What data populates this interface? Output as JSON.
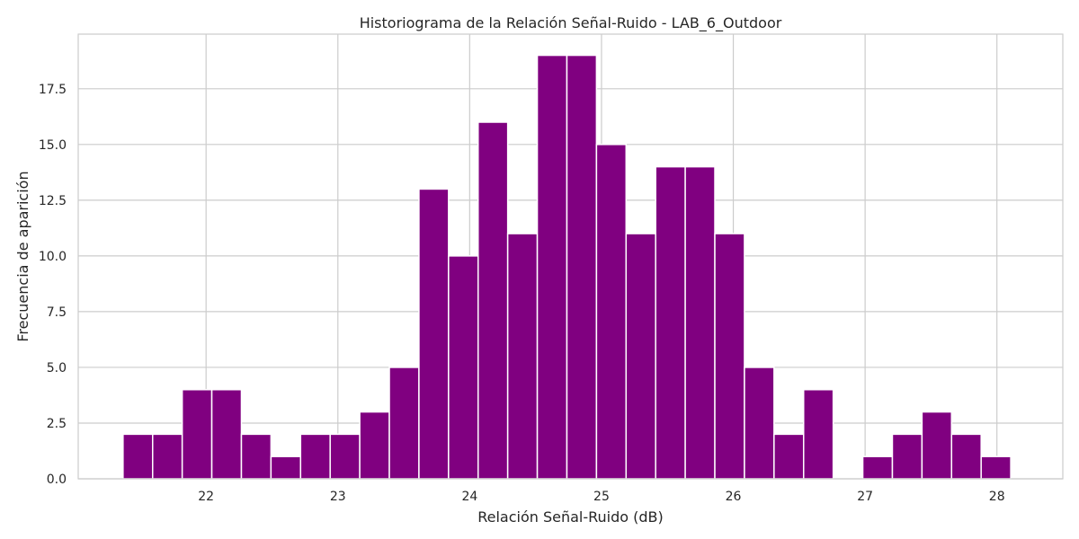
{
  "chart_data": {
    "type": "bar",
    "title": "Historiograma de la Relación Señal-Ruido - LAB_6_Outdoor",
    "xlabel": "Relación Señal-Ruido (dB)",
    "ylabel": "Frecuencia de aparición",
    "bin_start": 21.37,
    "bin_width": 0.2245,
    "values": [
      2,
      2,
      4,
      4,
      2,
      1,
      2,
      2,
      3,
      5,
      13,
      10,
      16,
      11,
      19,
      19,
      15,
      11,
      14,
      14,
      11,
      5,
      2,
      4,
      0,
      1,
      2,
      3,
      2,
      1
    ],
    "xlim": [
      21.03,
      28.5
    ],
    "ylim": [
      0,
      19.95
    ],
    "xticks": [
      22,
      23,
      24,
      25,
      26,
      27,
      28
    ],
    "xtick_labels": [
      "22",
      "23",
      "24",
      "25",
      "26",
      "27",
      "28"
    ],
    "yticks": [
      0,
      2.5,
      5,
      7.5,
      10,
      12.5,
      15,
      17.5
    ],
    "ytick_labels": [
      "0.0",
      "2.5",
      "5.0",
      "7.5",
      "10.0",
      "12.5",
      "15.0",
      "17.5"
    ],
    "bar_color": "#800080",
    "grid": true
  }
}
